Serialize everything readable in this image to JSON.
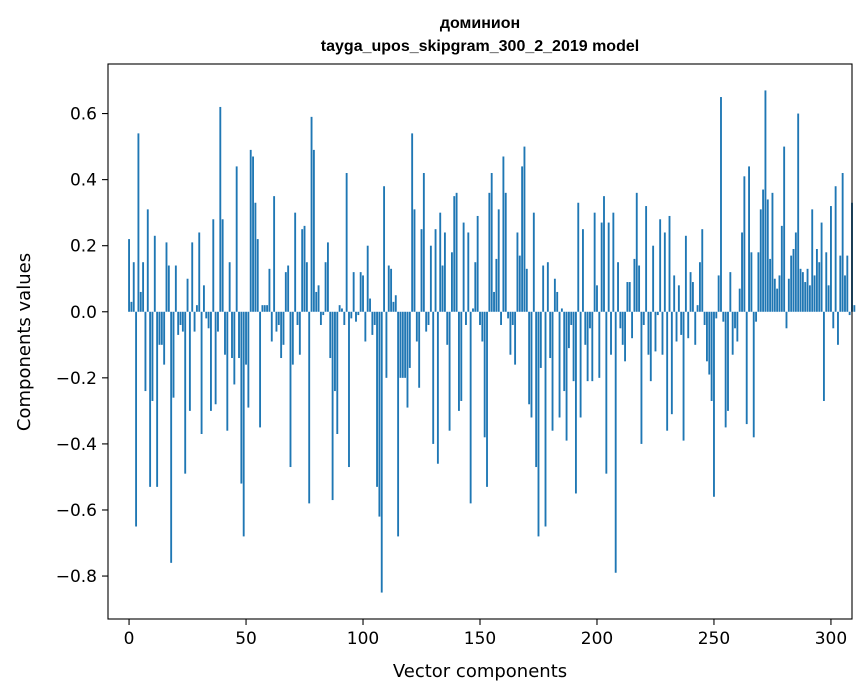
{
  "chart_data": {
    "type": "bar",
    "title": "доминион",
    "subtitle": "tayga_upos_skipgram_300_2_2019 model",
    "xlabel": "Vector components",
    "ylabel": "Components values",
    "xlim": [
      -9,
      309
    ],
    "ylim": [
      -0.93,
      0.75
    ],
    "xticks": [
      0,
      50,
      100,
      150,
      200,
      250,
      300
    ],
    "yticks": [
      -0.8,
      -0.6,
      -0.4,
      -0.2,
      0.0,
      0.2,
      0.4,
      0.6
    ],
    "ytick_labels": [
      "−0.8",
      "−0.6",
      "−0.4",
      "−0.2",
      "0.0",
      "0.2",
      "0.4",
      "0.6"
    ],
    "grid": false,
    "color": "#1f77b4",
    "values": [
      0.22,
      0.03,
      0.15,
      -0.65,
      0.54,
      0.06,
      0.15,
      -0.24,
      0.31,
      -0.53,
      -0.27,
      0.23,
      -0.53,
      -0.1,
      -0.1,
      -0.16,
      0.21,
      0.14,
      -0.76,
      -0.26,
      0.14,
      -0.07,
      -0.04,
      -0.06,
      -0.49,
      0.1,
      -0.3,
      0.21,
      -0.06,
      0.02,
      0.24,
      -0.37,
      0.08,
      -0.02,
      -0.05,
      -0.3,
      0.28,
      -0.28,
      -0.06,
      0.62,
      0.28,
      -0.13,
      -0.36,
      0.15,
      -0.14,
      -0.22,
      0.44,
      -0.14,
      -0.52,
      -0.68,
      -0.16,
      -0.29,
      0.49,
      0.47,
      0.33,
      0.22,
      -0.35,
      0.02,
      0.02,
      0.02,
      0.13,
      -0.09,
      0.35,
      -0.06,
      -0.04,
      -0.14,
      -0.1,
      0.12,
      0.14,
      -0.47,
      -0.16,
      0.3,
      -0.04,
      -0.13,
      0.25,
      0.26,
      0.15,
      -0.58,
      0.59,
      0.49,
      0.06,
      0.08,
      -0.04,
      -0.01,
      0.15,
      0.21,
      -0.14,
      -0.57,
      -0.24,
      -0.37,
      0.02,
      0.01,
      -0.04,
      0.42,
      -0.47,
      -0.02,
      0.12,
      -0.03,
      -0.01,
      0.12,
      0.11,
      -0.09,
      0.2,
      0.04,
      -0.07,
      -0.04,
      -0.53,
      -0.62,
      -0.85,
      0.38,
      -0.2,
      0.14,
      0.13,
      0.03,
      0.05,
      -0.68,
      -0.2,
      -0.2,
      -0.2,
      -0.29,
      -0.17,
      0.54,
      0.31,
      -0.09,
      -0.23,
      0.25,
      0.42,
      -0.06,
      -0.04,
      0.2,
      -0.4,
      0.25,
      -0.46,
      0.3,
      0.14,
      0.24,
      -0.1,
      -0.36,
      0.18,
      0.35,
      0.36,
      -0.3,
      -0.27,
      0.27,
      -0.04,
      0.24,
      -0.58,
      0.01,
      0.15,
      0.29,
      -0.04,
      -0.09,
      -0.38,
      -0.53,
      0.36,
      0.42,
      0.06,
      0.16,
      0.31,
      -0.04,
      0.47,
      0.36,
      -0.02,
      -0.13,
      -0.04,
      -0.16,
      0.24,
      0.17,
      0.44,
      0.5,
      0.13,
      -0.28,
      -0.32,
      0.3,
      -0.47,
      -0.68,
      -0.17,
      0.14,
      -0.65,
      0.15,
      -0.14,
      -0.36,
      0.1,
      0.06,
      -0.32,
      0.01,
      -0.24,
      -0.39,
      -0.11,
      -0.04,
      -0.21,
      -0.55,
      0.33,
      -0.32,
      0.25,
      -0.1,
      -0.21,
      -0.05,
      -0.21,
      0.3,
      0.08,
      -0.2,
      0.27,
      0.35,
      -0.49,
      0.27,
      -0.13,
      0.3,
      -0.79,
      0.15,
      -0.05,
      -0.1,
      -0.15,
      0.09,
      0.09,
      -0.08,
      0.16,
      0.36,
      0.14,
      -0.4,
      -0.04,
      0.32,
      -0.13,
      -0.21,
      0.2,
      -0.12,
      -0.01,
      0.28,
      -0.13,
      0.24,
      -0.36,
      0.29,
      -0.31,
      0.11,
      -0.09,
      0.08,
      -0.07,
      -0.39,
      0.23,
      -0.08,
      0.12,
      0.09,
      -0.1,
      0.02,
      0.15,
      0.25,
      -0.04,
      -0.15,
      -0.19,
      -0.27,
      -0.56,
      -0.02,
      0.11,
      0.65,
      -0.03,
      -0.35,
      -0.3,
      0.12,
      -0.13,
      -0.05,
      -0.09,
      0.07,
      0.24,
      0.41,
      -0.34,
      0.44,
      0.18,
      -0.38,
      -0.03,
      0.18,
      0.31,
      0.37,
      0.67,
      0.34,
      0.16,
      0.36,
      0.1,
      0.07,
      0.11,
      0.26,
      0.5,
      -0.05,
      0.1,
      0.17,
      0.19,
      0.24,
      0.6,
      0.13,
      0.12,
      0.09,
      0.13,
      0.08,
      0.31,
      0.11,
      0.19,
      0.15,
      0.27,
      -0.27,
      0.18,
      0.08,
      0.32,
      -0.05,
      0.38,
      -0.1,
      0.17,
      0.42,
      0.11,
      0.17,
      -0.01,
      0.33,
      0.02
    ]
  }
}
